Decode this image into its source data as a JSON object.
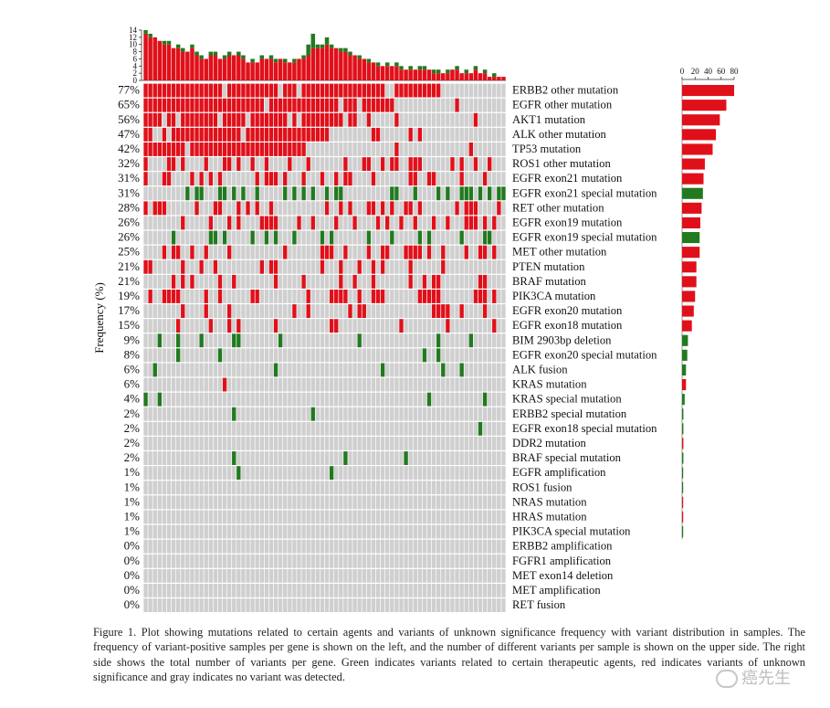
{
  "figure": {
    "caption": "Figure 1. Plot showing mutations related to certain agents and variants of unknown significance frequency with variant distribution in samples. The frequency of variant-positive samples per gene is shown on the left, and the number of different variants per sample is shown on the upper side. The right side shows the total number of variants per gene. Green indicates variants related to certain therapeutic agents, red indicates variants of unknown significance and gray indicates no variant was detected.",
    "watermark": "癌先生"
  },
  "colors": {
    "vus": "#e0101a",
    "therapeutic": "#217a1f",
    "none": "#cfcfcf",
    "background": "#ffffff"
  },
  "chart_data": [
    {
      "type": "heatmap",
      "ylabel": "Frequency (%)",
      "legend": "none",
      "n_samples": 78,
      "rows": [
        {
          "gene": "ERBB2 other mutation",
          "pct": "77%",
          "total": 80,
          "kind": "vus"
        },
        {
          "gene": "EGFR other mutation",
          "pct": "65%",
          "total": 68,
          "kind": "vus"
        },
        {
          "gene": "AKT1 mutation",
          "pct": "56%",
          "total": 58,
          "kind": "vus"
        },
        {
          "gene": "ALK other mutation",
          "pct": "47%",
          "total": 52,
          "kind": "vus"
        },
        {
          "gene": "TP53 mutation",
          "pct": "42%",
          "total": 47,
          "kind": "vus"
        },
        {
          "gene": "ROS1 other mutation",
          "pct": "32%",
          "total": 35,
          "kind": "vus"
        },
        {
          "gene": "EGFR exon21 mutation",
          "pct": "31%",
          "total": 33,
          "kind": "vus"
        },
        {
          "gene": "EGFR exon21 special mutation",
          "pct": "31%",
          "total": 32,
          "kind": "therapeutic"
        },
        {
          "gene": "RET other mutation",
          "pct": "28%",
          "total": 30,
          "kind": "vus"
        },
        {
          "gene": "EGFR exon19 mutation",
          "pct": "26%",
          "total": 28,
          "kind": "vus"
        },
        {
          "gene": "EGFR exon19 special mutation",
          "pct": "26%",
          "total": 27,
          "kind": "therapeutic"
        },
        {
          "gene": "MET other mutation",
          "pct": "25%",
          "total": 27,
          "kind": "vus"
        },
        {
          "gene": "PTEN mutation",
          "pct": "21%",
          "total": 22,
          "kind": "vus"
        },
        {
          "gene": "BRAF mutation",
          "pct": "21%",
          "total": 22,
          "kind": "vus"
        },
        {
          "gene": "PIK3CA mutation",
          "pct": "19%",
          "total": 20,
          "kind": "vus"
        },
        {
          "gene": "EGFR exon20 mutation",
          "pct": "17%",
          "total": 18,
          "kind": "vus"
        },
        {
          "gene": "EGFR exon18 mutation",
          "pct": "15%",
          "total": 15,
          "kind": "vus"
        },
        {
          "gene": "BIM 2903bp deletion",
          "pct": "9%",
          "total": 9,
          "kind": "therapeutic"
        },
        {
          "gene": "EGFR exon20 special mutation",
          "pct": "8%",
          "total": 8,
          "kind": "therapeutic"
        },
        {
          "gene": "ALK fusion",
          "pct": "6%",
          "total": 6,
          "kind": "therapeutic"
        },
        {
          "gene": "KRAS mutation",
          "pct": "6%",
          "total": 6,
          "kind": "vus"
        },
        {
          "gene": "KRAS special mutation",
          "pct": "4%",
          "total": 4,
          "kind": "therapeutic"
        },
        {
          "gene": "ERBB2 special mutation",
          "pct": "2%",
          "total": 2,
          "kind": "therapeutic"
        },
        {
          "gene": "EGFR exon18 special mutation",
          "pct": "2%",
          "total": 2,
          "kind": "therapeutic"
        },
        {
          "gene": "DDR2 mutation",
          "pct": "2%",
          "total": 2,
          "kind": "vus"
        },
        {
          "gene": "BRAF special mutation",
          "pct": "2%",
          "total": 2,
          "kind": "therapeutic"
        },
        {
          "gene": "EGFR amplification",
          "pct": "1%",
          "total": 1,
          "kind": "therapeutic"
        },
        {
          "gene": "ROS1 fusion",
          "pct": "1%",
          "total": 1,
          "kind": "therapeutic"
        },
        {
          "gene": "NRAS mutation",
          "pct": "1%",
          "total": 1,
          "kind": "vus"
        },
        {
          "gene": "HRAS mutation",
          "pct": "1%",
          "total": 1,
          "kind": "vus"
        },
        {
          "gene": "PIK3CA special mutation",
          "pct": "1%",
          "total": 1,
          "kind": "therapeutic"
        },
        {
          "gene": "ERBB2 amplification",
          "pct": "0%",
          "total": 0,
          "kind": "therapeutic"
        },
        {
          "gene": "FGFR1 amplification",
          "pct": "0%",
          "total": 0,
          "kind": "therapeutic"
        },
        {
          "gene": "MET exon14 deletion",
          "pct": "0%",
          "total": 0,
          "kind": "therapeutic"
        },
        {
          "gene": "MET amplification",
          "pct": "0%",
          "total": 0,
          "kind": "therapeutic"
        },
        {
          "gene": "RET fusion",
          "pct": "0%",
          "total": 0,
          "kind": "therapeutic"
        }
      ],
      "note": "Each of the 36 rows spans 78 sample columns; positive cells are red (variant of unknown significance) or green (therapeutic-agent related), others gray."
    },
    {
      "type": "bar",
      "role": "top",
      "title": "",
      "ylim": [
        0,
        14
      ],
      "yticks": [
        "0",
        "2",
        "4",
        "6",
        "8",
        "10",
        "12",
        "14"
      ],
      "series": [
        {
          "values_red": [
            13,
            12,
            12,
            11,
            10,
            10,
            9,
            9,
            8,
            8,
            9,
            7,
            6,
            6,
            7,
            7,
            6,
            6,
            7,
            7,
            7,
            6,
            5,
            5,
            5,
            6,
            6,
            6,
            5,
            6,
            5,
            5,
            5,
            6,
            6,
            7,
            9,
            9,
            9,
            10,
            9,
            9,
            8,
            8,
            7,
            7,
            6,
            6,
            5,
            5,
            4,
            4,
            4,
            4,
            4,
            3,
            3,
            3,
            3,
            3,
            3,
            3,
            2,
            2,
            2,
            2,
            3,
            3,
            2,
            2,
            2,
            3,
            2,
            2,
            1,
            1,
            1,
            1
          ]
        },
        {
          "values_green": [
            1,
            1,
            0,
            0,
            1,
            1,
            0,
            1,
            1,
            0,
            1,
            1,
            1,
            0,
            1,
            1,
            0,
            1,
            1,
            0,
            1,
            1,
            0,
            1,
            0,
            1,
            0,
            1,
            1,
            0,
            1,
            0,
            1,
            0,
            1,
            3,
            4,
            1,
            1,
            2,
            1,
            0,
            1,
            1,
            1,
            0,
            1,
            0,
            1,
            0,
            1,
            0,
            1,
            0,
            1,
            1,
            0,
            1,
            0,
            1,
            1,
            0,
            1,
            1,
            0,
            1,
            0,
            1,
            0,
            1,
            0,
            1,
            0,
            1,
            0,
            1,
            0,
            0
          ]
        }
      ]
    },
    {
      "type": "bar",
      "role": "right",
      "orientation": "horizontal",
      "xlim": [
        0,
        80
      ],
      "xticks": [
        "0",
        "20",
        "40",
        "60",
        "80"
      ]
    }
  ]
}
